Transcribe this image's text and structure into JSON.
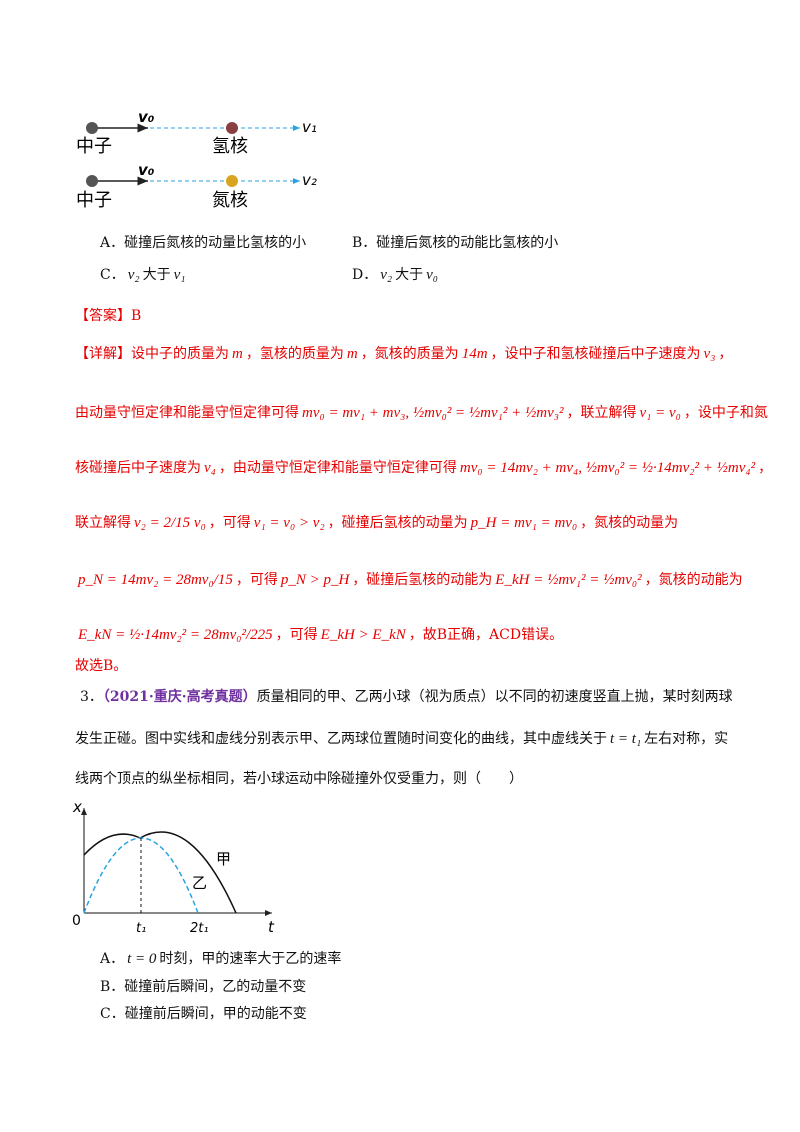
{
  "figure1": {
    "rows": [
      {
        "velocity_in": "v₀",
        "velocity_out": "v₁",
        "projectile": "中子",
        "target": "氢核"
      },
      {
        "velocity_in": "v₀",
        "velocity_out": "v₂",
        "projectile": "中子",
        "target": "氮核"
      }
    ]
  },
  "lines": [
    [
      {
        "text": "A．碰撞后氮核的动量比氢核的小"
      }
    ],
    [
      {
        "text": "B．碰撞后氮核的动能比氢核的小"
      }
    ],
    [
      {
        "text": "C．"
      },
      {
        "math": "v₂"
      },
      {
        "text": "大于"
      },
      {
        "math": "v₁"
      }
    ],
    [
      {
        "text": "D．"
      },
      {
        "math": "v₂"
      },
      {
        "text": "大于"
      },
      {
        "math": "v₀"
      }
    ],
    [
      {
        "text": "【答案】B"
      }
    ],
    [
      {
        "text": "【详解】设中子的质量为"
      },
      {
        "math": "m"
      },
      {
        "text": "，氢核的质量为"
      },
      {
        "math": "m"
      },
      {
        "text": "，氮核的质量为"
      },
      {
        "math": "14m"
      },
      {
        "text": "，设中子和氢核碰撞后中子速度为"
      },
      {
        "math": "v₃"
      },
      {
        "text": "，"
      }
    ],
    [
      {
        "text": "由动量守恒定律和能量守恒定律可得"
      },
      {
        "math": "mv₀ = mv₁ + mv₃, ½mv₀² = ½mv₁² + ½mv₃²"
      },
      {
        "text": "，联立解得"
      },
      {
        "math": "v₁ = v₀"
      },
      {
        "text": "，设中子和氮"
      }
    ],
    [
      {
        "text": "核碰撞后中子速度为"
      },
      {
        "math": "v₄"
      },
      {
        "text": "，由动量守恒定律和能量守恒定律可得"
      },
      {
        "math": "mv₀ = 14mv₂ + mv₄, ½mv₀² = ½·14mv₂² + ½mv₄²"
      },
      {
        "text": "，"
      }
    ],
    [
      {
        "text": "联立解得"
      },
      {
        "math": "v₂ = 2/15 v₀"
      },
      {
        "text": "，可得"
      },
      {
        "math": "v₁ = v₀ > v₂"
      },
      {
        "text": "，碰撞后氢核的动量为"
      },
      {
        "math": "p_H = mv₁ = mv₀"
      },
      {
        "text": "，氮核的动量为"
      }
    ],
    [
      {
        "math": "p_N = 14mv₂ = 28mv₀/15"
      },
      {
        "text": "，可得"
      },
      {
        "math": "p_N > p_H"
      },
      {
        "text": "，碰撞后氢核的动能为"
      },
      {
        "math": "E_kH = ½mv₁² = ½mv₀²"
      },
      {
        "text": "，氮核的动能为"
      }
    ],
    [
      {
        "math": "E_kN = ½·14mv₂² = 28mv₀²/225"
      },
      {
        "text": "，可得"
      },
      {
        "math": "E_kH > E_kN"
      },
      {
        "text": "，故B正确，ACD错误。"
      }
    ],
    [
      {
        "text": "故选B。"
      }
    ],
    [
      {
        "text": "3．"
      },
      {
        "tag": "（2021·重庆·高考真题）"
      },
      {
        "text": "质量相同的甲、乙两小球（视为质点）以不同的初速度竖直上抛，某时刻两球"
      }
    ],
    [
      {
        "text": "发生正碰。图中实线和虚线分别表示甲、乙两球位置随时间变化的曲线，其中虚线关于"
      },
      {
        "math": "t = t₁"
      },
      {
        "text": "左右对称，实"
      }
    ],
    [
      {
        "text": "线两个顶点的纵坐标相同，若小球运动中除碰撞外仅受重力，则（　　）"
      }
    ],
    [
      {
        "text": "A．"
      },
      {
        "math": "t = 0"
      },
      {
        "text": "时刻，甲的速率大于乙的速率"
      }
    ],
    [
      {
        "text": "B．碰撞前后瞬间，乙的动量不变"
      }
    ],
    [
      {
        "text": "C．碰撞前后瞬间，甲的动能不变"
      }
    ]
  ],
  "figure2": {
    "y_axis": "x",
    "x_axis": "t",
    "origin": "0",
    "tick_1": "t₁",
    "tick_2": "2t₁",
    "solid_curve": "甲",
    "dashed_curve": "乙"
  }
}
